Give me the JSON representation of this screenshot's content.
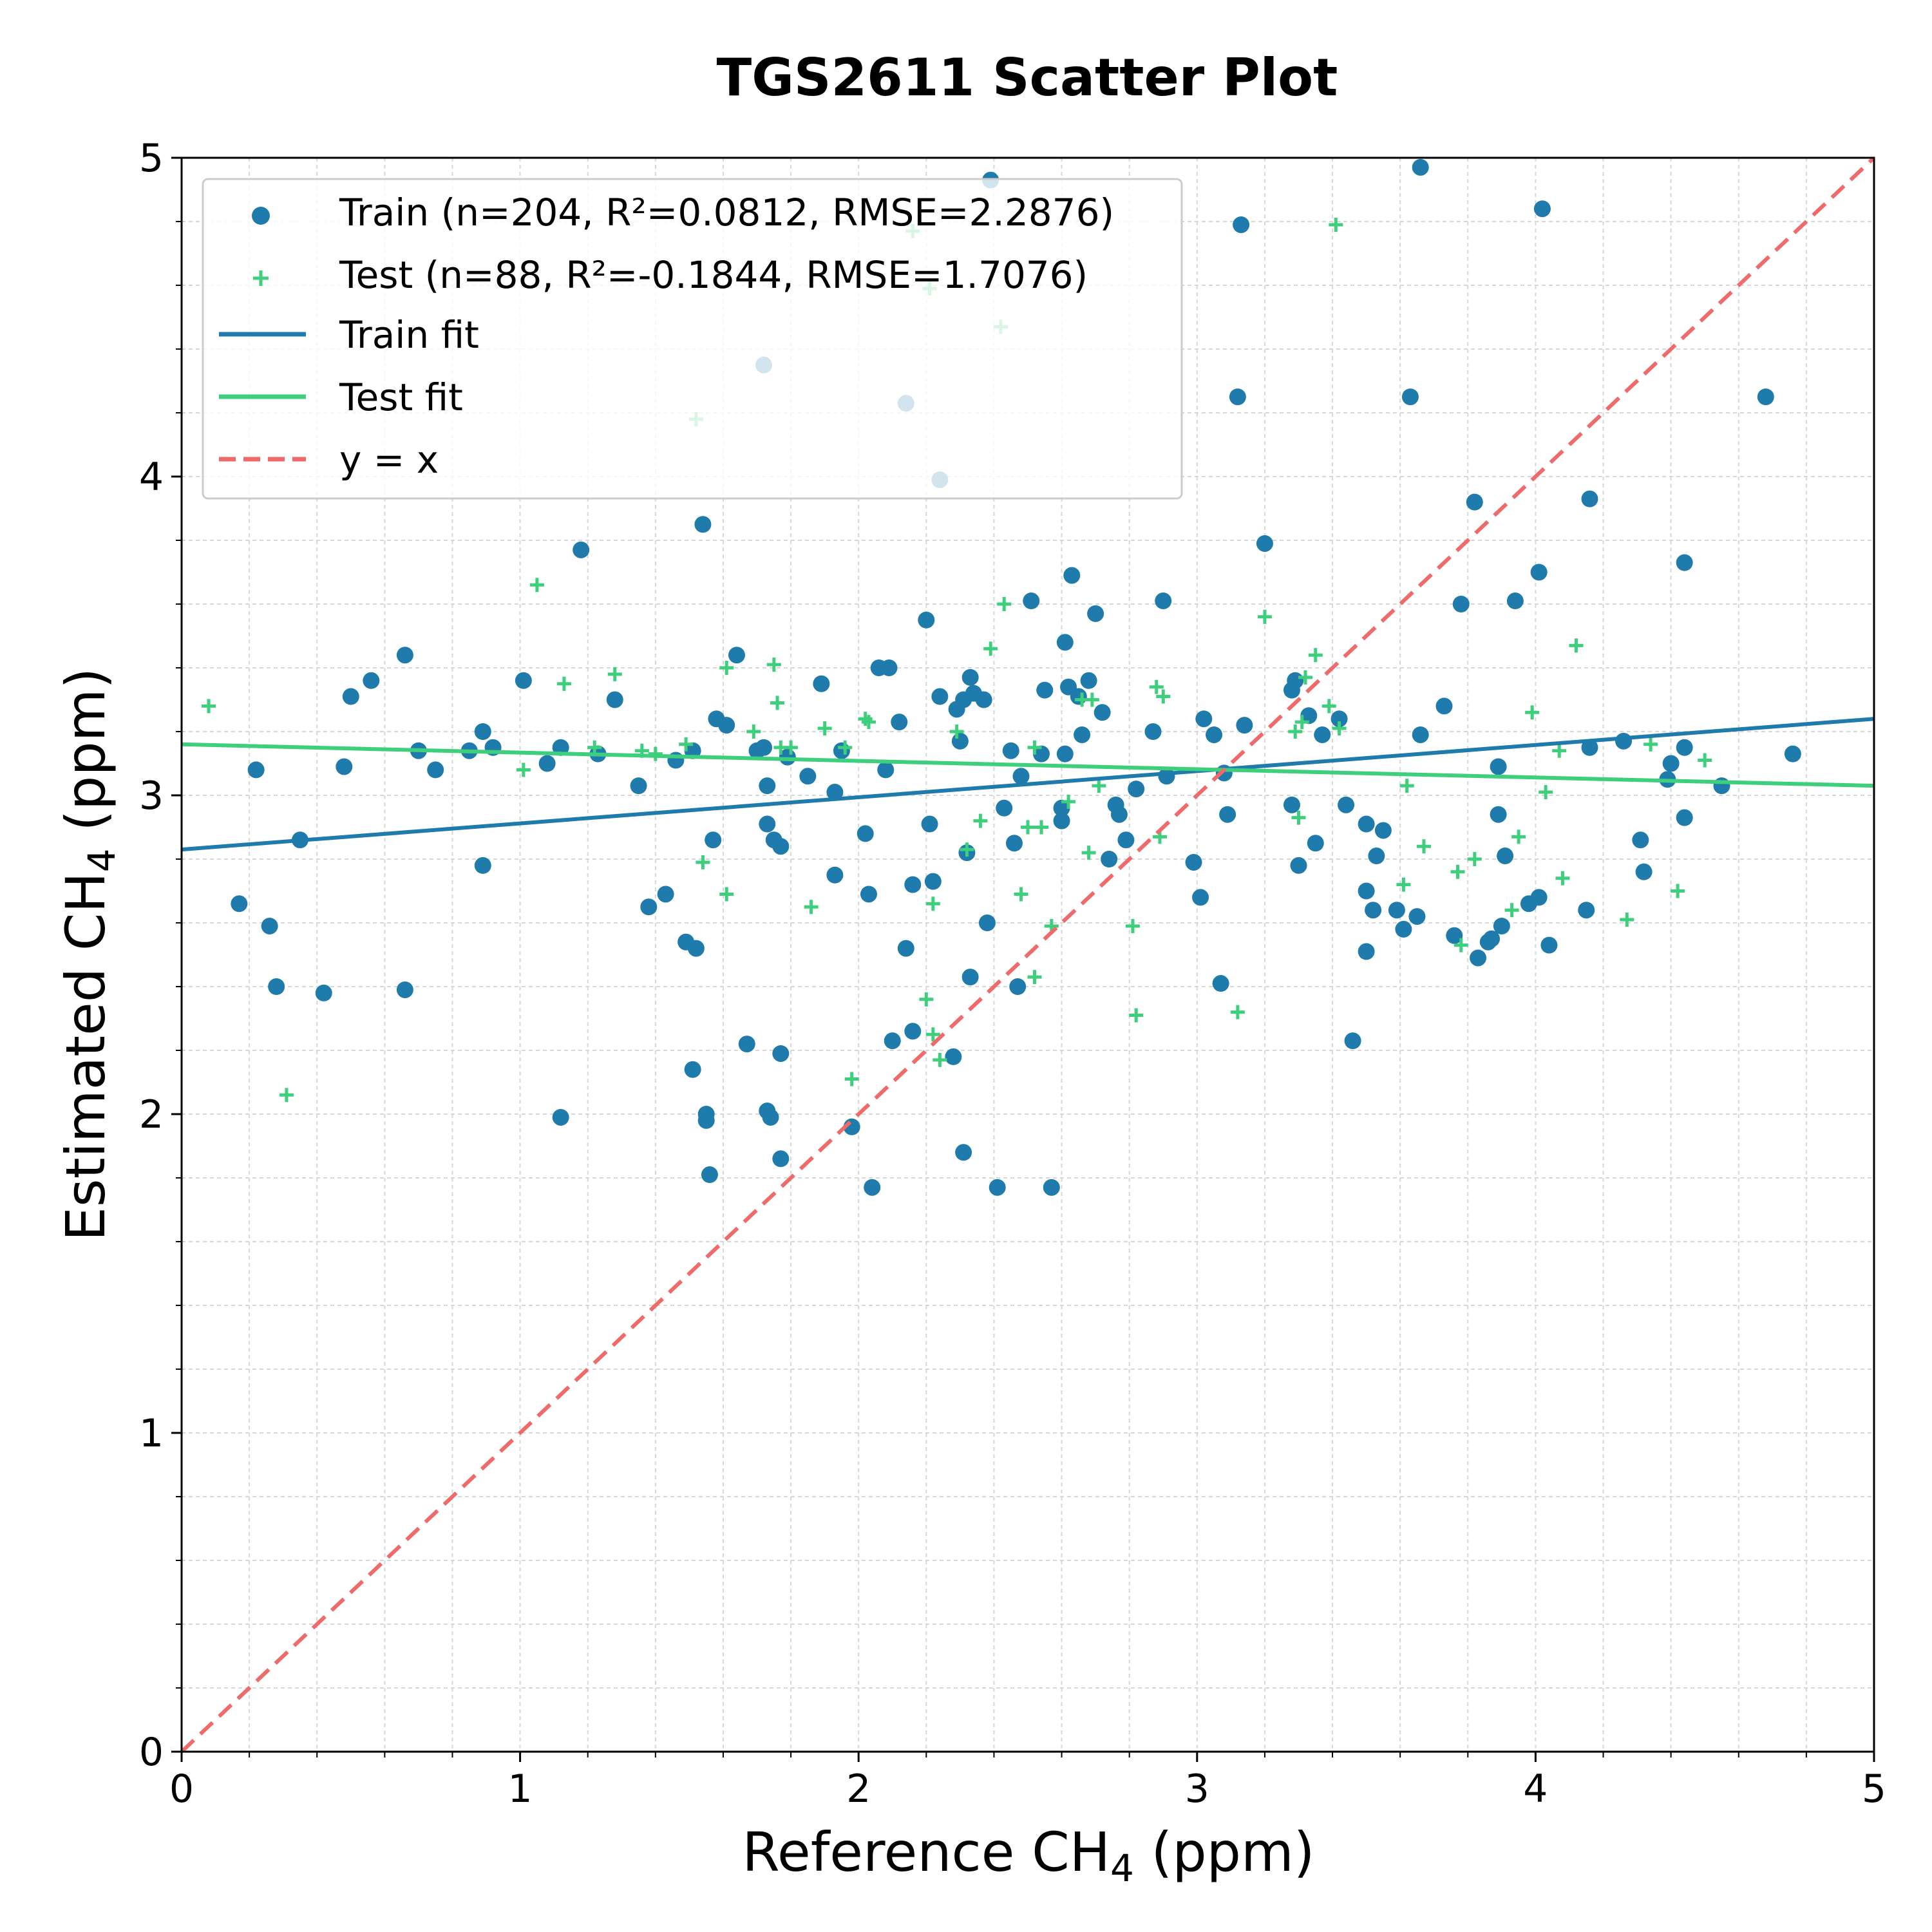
{
  "chart_data": {
    "type": "scatter",
    "title": "TGS2611 Scatter Plot",
    "xlabel": "Reference CH",
    "xlabel_sub": "4",
    "xlabel_unit": " (ppm)",
    "ylabel": "Estimated CH",
    "ylabel_sub": "4",
    "ylabel_unit": " (ppm)",
    "xlim": [
      0,
      5
    ],
    "ylim": [
      0,
      5
    ],
    "xticks": [
      "0",
      "1",
      "2",
      "3",
      "4",
      "5"
    ],
    "yticks": [
      "0",
      "1",
      "2",
      "3",
      "4",
      "5"
    ],
    "grid": true,
    "legend_position": "top-left",
    "colors": {
      "train": "#1f7bab",
      "test": "#3ecf7c",
      "identity": "#ef6b6b"
    },
    "legend": {
      "train": "Train (n=204, R²=0.0812, RMSE=2.2876)",
      "test": "Test (n=88, R²=-0.1844, RMSE=1.7076)",
      "train_fit": "Train fit",
      "test_fit": "Test fit",
      "identity": "y = x"
    },
    "train_fit": {
      "x": [
        0,
        5
      ],
      "y": [
        2.83,
        3.24
      ]
    },
    "test_fit": {
      "x": [
        0,
        5
      ],
      "y": [
        3.16,
        3.03
      ]
    },
    "identity_line": {
      "x": [
        0,
        5
      ],
      "y": [
        0,
        5
      ]
    },
    "series": [
      {
        "name": "Train (n=204, R²=0.0812, RMSE=2.2876)",
        "marker": "circle",
        "points": [
          [
            0.17,
            2.66
          ],
          [
            0.22,
            3.08
          ],
          [
            0.26,
            2.59
          ],
          [
            0.28,
            2.4
          ],
          [
            0.35,
            2.86
          ],
          [
            0.42,
            2.38
          ],
          [
            0.48,
            3.09
          ],
          [
            0.5,
            3.31
          ],
          [
            0.56,
            3.36
          ],
          [
            0.66,
            3.44
          ],
          [
            0.66,
            2.39
          ],
          [
            0.7,
            3.14
          ],
          [
            0.75,
            3.08
          ],
          [
            0.85,
            3.14
          ],
          [
            0.89,
            2.78
          ],
          [
            0.92,
            3.15
          ],
          [
            0.89,
            3.2
          ],
          [
            1.01,
            3.36
          ],
          [
            1.08,
            3.1
          ],
          [
            1.12,
            3.15
          ],
          [
            1.12,
            1.99
          ],
          [
            1.18,
            3.77
          ],
          [
            1.23,
            3.13
          ],
          [
            1.28,
            3.3
          ],
          [
            1.35,
            3.03
          ],
          [
            1.38,
            2.65
          ],
          [
            1.43,
            2.69
          ],
          [
            1.46,
            3.11
          ],
          [
            1.49,
            2.54
          ],
          [
            1.51,
            2.14
          ],
          [
            1.52,
            2.52
          ],
          [
            1.51,
            3.14
          ],
          [
            1.54,
            3.85
          ],
          [
            1.55,
            2.0
          ],
          [
            1.55,
            1.98
          ],
          [
            1.57,
            2.86
          ],
          [
            1.56,
            1.81
          ],
          [
            1.58,
            3.24
          ],
          [
            1.61,
            3.22
          ],
          [
            1.64,
            3.44
          ],
          [
            1.67,
            2.22
          ],
          [
            1.7,
            3.14
          ],
          [
            1.72,
            3.15
          ],
          [
            1.73,
            2.91
          ],
          [
            1.73,
            2.01
          ],
          [
            1.73,
            3.03
          ],
          [
            1.74,
            1.99
          ],
          [
            1.75,
            2.86
          ],
          [
            1.77,
            2.19
          ],
          [
            1.77,
            1.86
          ],
          [
            1.77,
            2.84
          ],
          [
            1.79,
            3.12
          ],
          [
            1.85,
            3.06
          ],
          [
            1.89,
            3.35
          ],
          [
            1.93,
            3.01
          ],
          [
            1.93,
            2.75
          ],
          [
            1.95,
            3.14
          ],
          [
            1.98,
            1.96
          ],
          [
            2.02,
            2.88
          ],
          [
            2.03,
            2.69
          ],
          [
            2.04,
            1.77
          ],
          [
            2.06,
            3.4
          ],
          [
            2.08,
            3.08
          ],
          [
            2.09,
            3.4
          ],
          [
            2.1,
            2.23
          ],
          [
            2.12,
            3.23
          ],
          [
            2.14,
            2.52
          ],
          [
            2.16,
            2.26
          ],
          [
            2.16,
            2.72
          ],
          [
            2.2,
            3.55
          ],
          [
            2.21,
            2.91
          ],
          [
            2.22,
            2.73
          ],
          [
            2.24,
            3.31
          ],
          [
            2.28,
            2.18
          ],
          [
            2.29,
            3.27
          ],
          [
            2.3,
            3.17
          ],
          [
            2.31,
            1.88
          ],
          [
            2.31,
            3.3
          ],
          [
            2.32,
            2.82
          ],
          [
            2.33,
            3.37
          ],
          [
            2.33,
            2.43
          ],
          [
            2.34,
            3.32
          ],
          [
            2.37,
            3.3
          ],
          [
            2.38,
            2.6
          ],
          [
            2.41,
            1.77
          ],
          [
            2.43,
            2.96
          ],
          [
            2.45,
            3.14
          ],
          [
            2.46,
            2.85
          ],
          [
            2.47,
            2.4
          ],
          [
            2.48,
            3.06
          ],
          [
            2.51,
            3.61
          ],
          [
            2.54,
            3.13
          ],
          [
            2.55,
            3.33
          ],
          [
            2.57,
            1.77
          ],
          [
            2.6,
            2.92
          ],
          [
            2.6,
            2.96
          ],
          [
            2.61,
            3.48
          ],
          [
            2.61,
            3.13
          ],
          [
            2.62,
            3.34
          ],
          [
            2.63,
            3.69
          ],
          [
            2.65,
            3.31
          ],
          [
            2.66,
            3.19
          ],
          [
            2.68,
            3.36
          ],
          [
            2.7,
            3.57
          ],
          [
            2.72,
            3.26
          ],
          [
            2.74,
            2.8
          ],
          [
            2.76,
            2.97
          ],
          [
            2.77,
            2.94
          ],
          [
            2.79,
            2.86
          ],
          [
            2.82,
            3.02
          ],
          [
            2.87,
            3.2
          ],
          [
            2.9,
            3.61
          ],
          [
            2.91,
            3.06
          ],
          [
            2.99,
            2.79
          ],
          [
            3.01,
            2.68
          ],
          [
            3.02,
            3.24
          ],
          [
            3.05,
            3.19
          ],
          [
            3.07,
            2.41
          ],
          [
            3.08,
            3.07
          ],
          [
            3.09,
            2.94
          ],
          [
            3.12,
            4.25
          ],
          [
            3.13,
            4.79
          ],
          [
            3.14,
            3.22
          ],
          [
            3.2,
            3.79
          ],
          [
            3.28,
            3.33
          ],
          [
            3.28,
            2.97
          ],
          [
            3.29,
            3.36
          ],
          [
            3.3,
            2.78
          ],
          [
            3.33,
            3.25
          ],
          [
            3.35,
            2.85
          ],
          [
            3.37,
            3.19
          ],
          [
            3.42,
            3.24
          ],
          [
            3.44,
            2.97
          ],
          [
            3.46,
            2.23
          ],
          [
            3.5,
            2.91
          ],
          [
            3.5,
            2.51
          ],
          [
            3.5,
            2.7
          ],
          [
            3.52,
            2.64
          ],
          [
            3.53,
            2.81
          ],
          [
            3.55,
            2.89
          ],
          [
            3.59,
            2.64
          ],
          [
            3.61,
            2.58
          ],
          [
            3.63,
            4.25
          ],
          [
            3.65,
            2.62
          ],
          [
            3.66,
            4.97
          ],
          [
            3.66,
            3.19
          ],
          [
            3.73,
            3.28
          ],
          [
            3.76,
            2.56
          ],
          [
            3.78,
            3.6
          ],
          [
            3.82,
            3.92
          ],
          [
            3.83,
            2.49
          ],
          [
            3.86,
            2.54
          ],
          [
            3.87,
            2.55
          ],
          [
            3.89,
            2.94
          ],
          [
            3.89,
            3.09
          ],
          [
            3.9,
            2.59
          ],
          [
            3.91,
            2.81
          ],
          [
            3.94,
            3.61
          ],
          [
            3.98,
            2.66
          ],
          [
            4.01,
            2.68
          ],
          [
            4.01,
            3.7
          ],
          [
            4.02,
            4.84
          ],
          [
            4.04,
            2.53
          ],
          [
            4.15,
            2.64
          ],
          [
            4.16,
            3.15
          ],
          [
            4.16,
            3.93
          ],
          [
            4.26,
            3.17
          ],
          [
            4.31,
            2.86
          ],
          [
            4.32,
            2.76
          ],
          [
            4.39,
            3.05
          ],
          [
            4.4,
            3.1
          ],
          [
            4.44,
            3.73
          ],
          [
            4.44,
            2.93
          ],
          [
            4.44,
            3.15
          ],
          [
            4.55,
            3.03
          ],
          [
            4.68,
            4.25
          ],
          [
            4.76,
            3.13
          ],
          [
            1.72,
            4.35
          ],
          [
            2.14,
            4.23
          ],
          [
            2.24,
            3.99
          ],
          [
            2.39,
            4.93
          ]
        ]
      },
      {
        "name": "Test (n=88, R²=-0.1844, RMSE=1.7076)",
        "marker": "plus",
        "points": [
          [
            0.08,
            3.28
          ],
          [
            0.31,
            2.06
          ],
          [
            1.01,
            3.08
          ],
          [
            1.05,
            3.66
          ],
          [
            1.13,
            3.35
          ],
          [
            1.22,
            3.15
          ],
          [
            1.28,
            3.38
          ],
          [
            1.36,
            3.14
          ],
          [
            1.4,
            3.13
          ],
          [
            1.49,
            3.16
          ],
          [
            1.52,
            4.18
          ],
          [
            1.54,
            2.79
          ],
          [
            1.61,
            2.69
          ],
          [
            1.61,
            3.4
          ],
          [
            1.69,
            3.2
          ],
          [
            1.75,
            3.41
          ],
          [
            1.76,
            3.29
          ],
          [
            1.77,
            3.15
          ],
          [
            1.8,
            3.15
          ],
          [
            1.86,
            2.65
          ],
          [
            1.9,
            3.21
          ],
          [
            1.96,
            3.15
          ],
          [
            1.98,
            2.11
          ],
          [
            2.02,
            3.24
          ],
          [
            2.03,
            3.23
          ],
          [
            2.16,
            4.77
          ],
          [
            2.2,
            2.36
          ],
          [
            2.21,
            4.59
          ],
          [
            2.22,
            2.66
          ],
          [
            2.22,
            2.25
          ],
          [
            2.24,
            2.17
          ],
          [
            2.29,
            3.2
          ],
          [
            2.32,
            2.83
          ],
          [
            2.36,
            2.92
          ],
          [
            2.39,
            3.46
          ],
          [
            2.42,
            4.47
          ],
          [
            2.43,
            3.6
          ],
          [
            2.48,
            2.69
          ],
          [
            2.5,
            2.9
          ],
          [
            2.52,
            3.15
          ],
          [
            2.52,
            2.43
          ],
          [
            2.54,
            2.9
          ],
          [
            2.57,
            2.59
          ],
          [
            2.62,
            2.98
          ],
          [
            2.66,
            3.3
          ],
          [
            2.68,
            2.82
          ],
          [
            2.69,
            3.3
          ],
          [
            2.71,
            3.03
          ],
          [
            2.81,
            2.59
          ],
          [
            2.82,
            2.31
          ],
          [
            2.88,
            3.34
          ],
          [
            2.89,
            2.87
          ],
          [
            2.9,
            3.31
          ],
          [
            3.12,
            2.32
          ],
          [
            3.2,
            3.56
          ],
          [
            3.29,
            3.2
          ],
          [
            3.3,
            2.93
          ],
          [
            3.31,
            3.23
          ],
          [
            3.32,
            3.37
          ],
          [
            3.35,
            3.44
          ],
          [
            3.39,
            3.28
          ],
          [
            3.41,
            4.79
          ],
          [
            3.42,
            3.21
          ],
          [
            3.61,
            2.72
          ],
          [
            3.62,
            3.03
          ],
          [
            3.67,
            2.84
          ],
          [
            3.77,
            2.76
          ],
          [
            3.78,
            2.53
          ],
          [
            3.82,
            2.8
          ],
          [
            3.93,
            2.64
          ],
          [
            3.95,
            2.87
          ],
          [
            3.99,
            3.26
          ],
          [
            4.03,
            3.01
          ],
          [
            4.07,
            3.14
          ],
          [
            4.08,
            2.74
          ],
          [
            4.12,
            3.47
          ],
          [
            4.27,
            2.61
          ],
          [
            4.34,
            3.16
          ],
          [
            4.42,
            2.7
          ],
          [
            4.5,
            3.11
          ]
        ]
      }
    ]
  }
}
